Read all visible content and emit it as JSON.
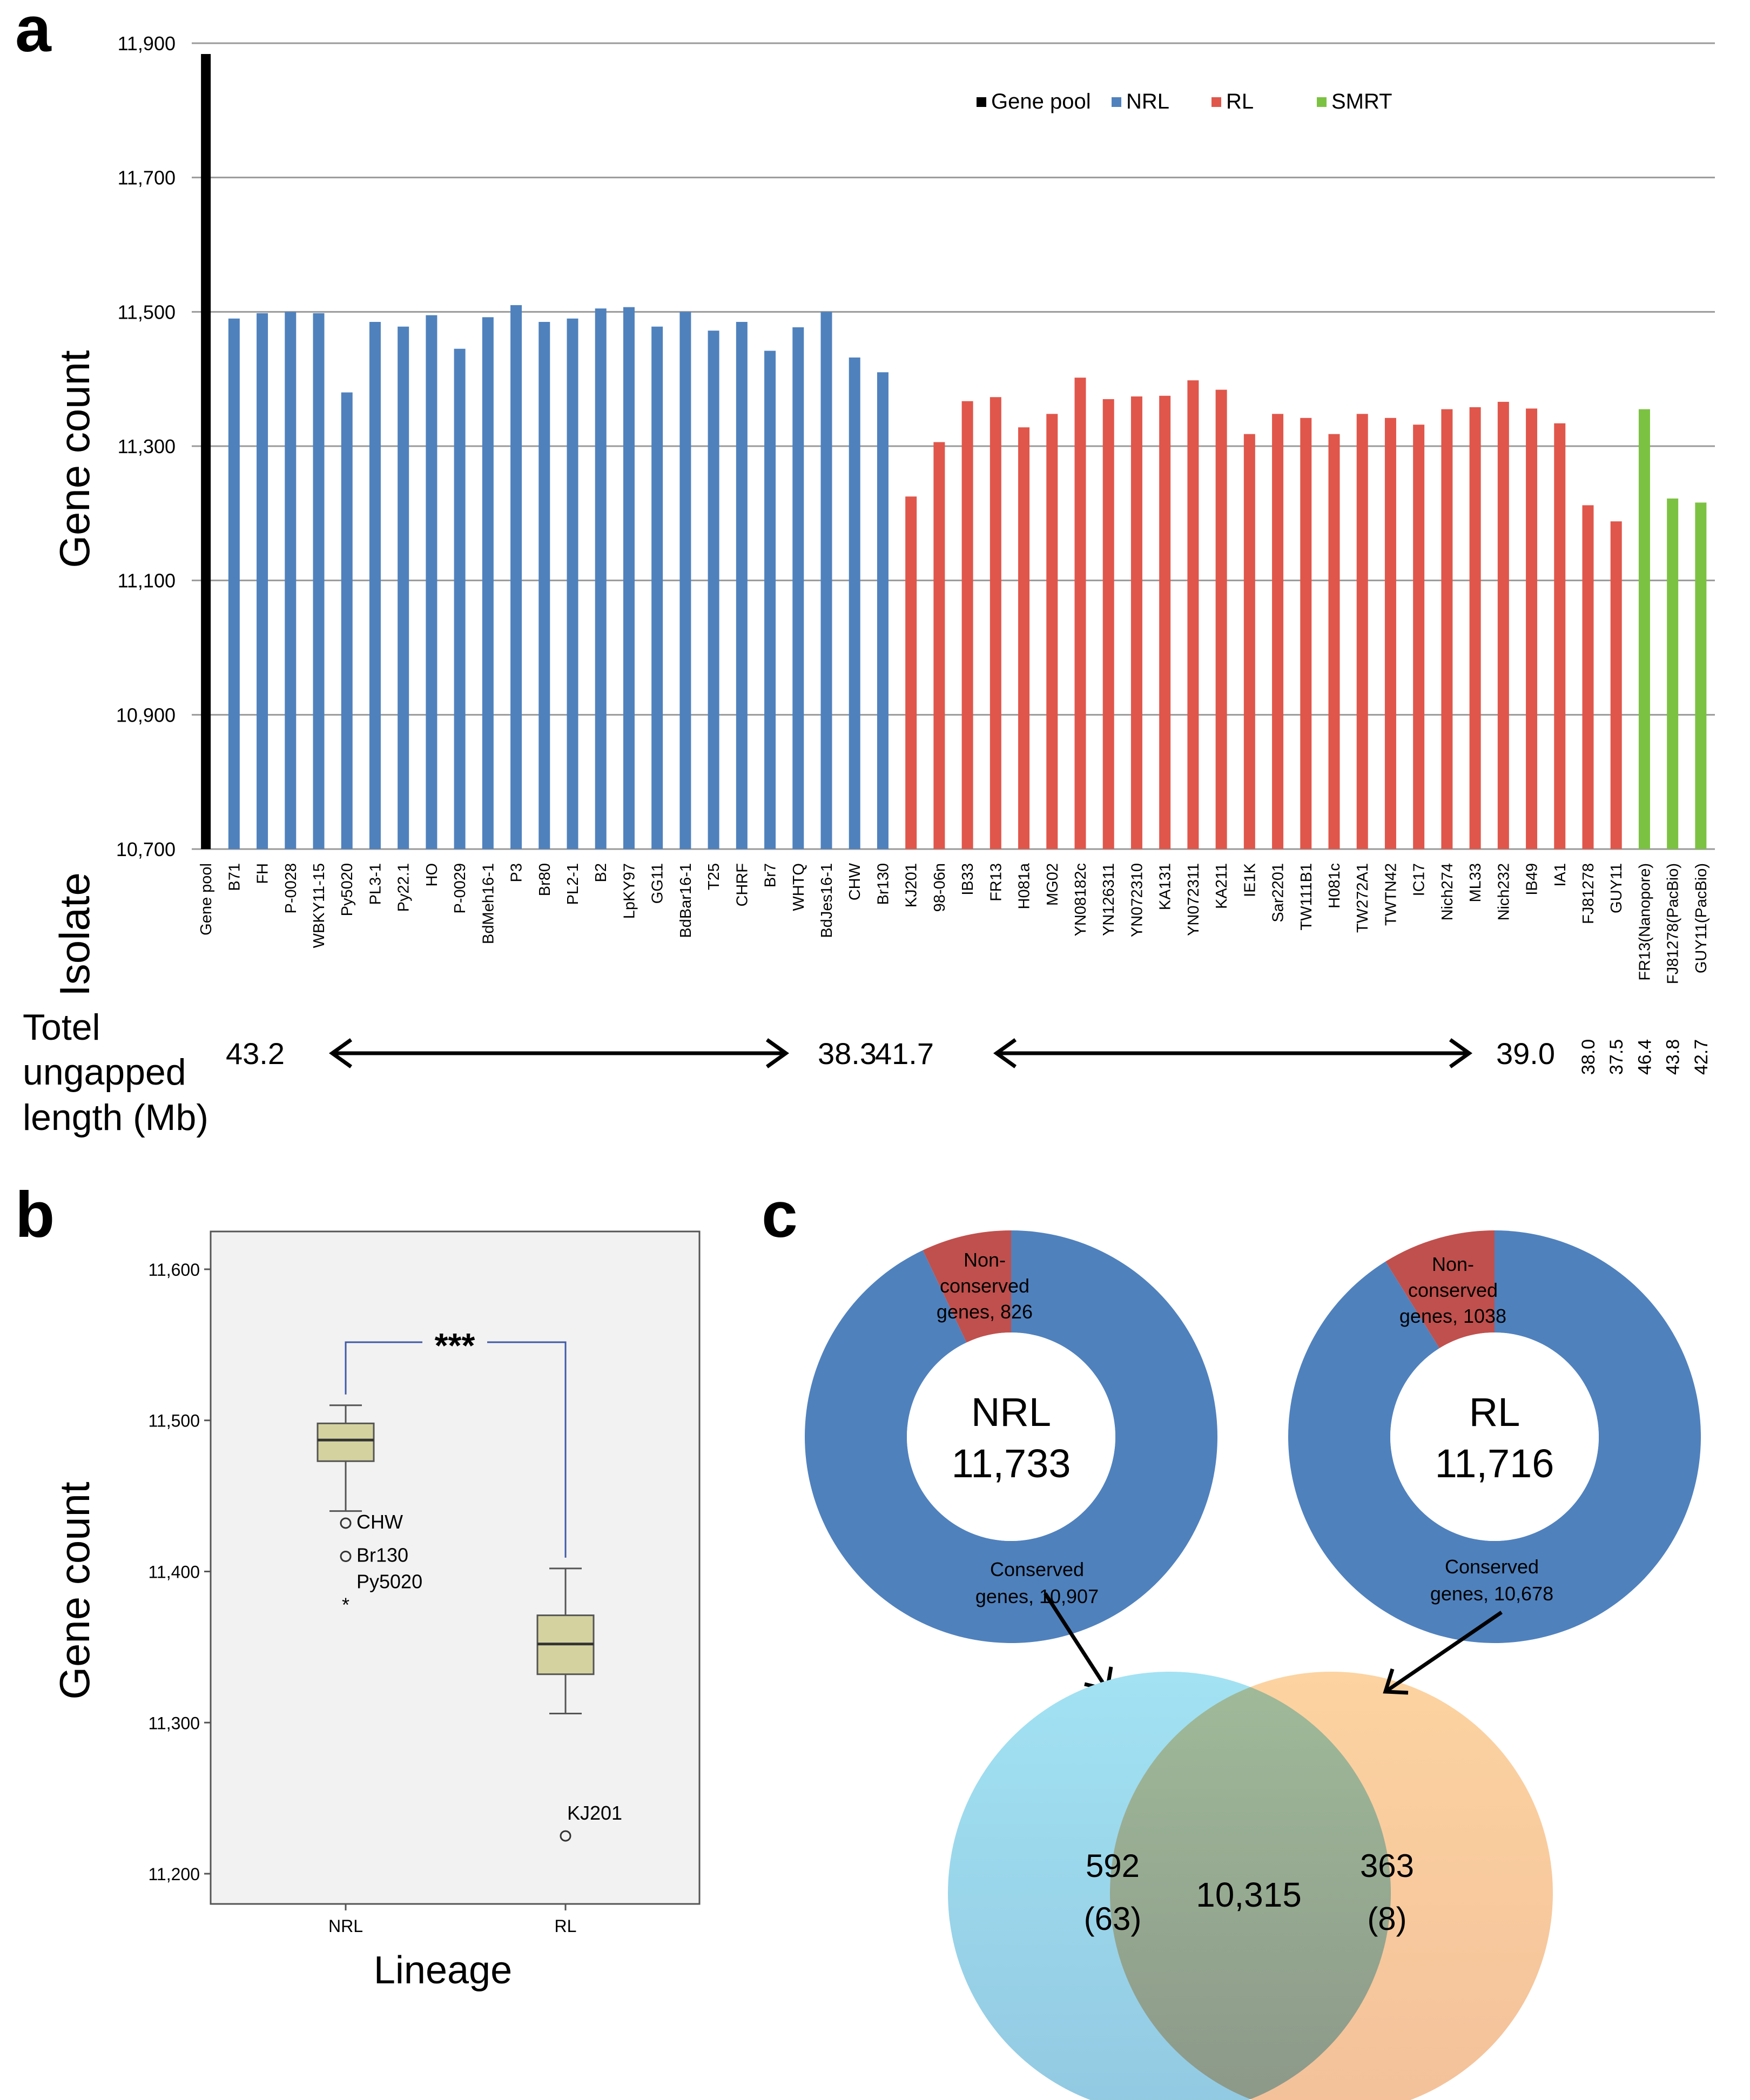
{
  "panels": {
    "a": "a",
    "b": "b",
    "c": "c"
  },
  "colors": {
    "gene_pool": "#000000",
    "NRL": "#4f81bd",
    "RL": "#e0564b",
    "SMRT": "#7cc242",
    "grid": "#9a9a9a",
    "box_fill": "#d4d3a0",
    "plot_bg": "#f2f2f2"
  },
  "chart_data": [
    {
      "panel": "a",
      "type": "bar",
      "ylabel": "Gene count",
      "xlabel": "Isolate",
      "ylim": [
        10700,
        11900
      ],
      "yticks": [
        10700,
        10900,
        11100,
        11300,
        11500,
        11700,
        11900
      ],
      "ytick_labels": [
        "10,700",
        "10,900",
        "11,100",
        "11,300",
        "11,500",
        "11,700",
        "11,900"
      ],
      "grid": true,
      "legend": {
        "position": "top-right",
        "items": [
          {
            "label": "Gene pool",
            "color": "#000000"
          },
          {
            "label": "NRL",
            "color": "#4f81bd"
          },
          {
            "label": "RL",
            "color": "#e0564b"
          },
          {
            "label": "SMRT",
            "color": "#7cc242"
          }
        ]
      },
      "categories": [
        "Gene pool",
        "B71",
        "FH",
        "P-0028",
        "WBKY11-15",
        "Py5020",
        "PL3-1",
        "Py22.1",
        "HO",
        "P-0029",
        "BdMeh16-1",
        "P3",
        "Br80",
        "PL2-1",
        "B2",
        "LpKY97",
        "GG11",
        "BdBar16-1",
        "T25",
        "CHRF",
        "Br7",
        "WHTQ",
        "BdJes16-1",
        "CHW",
        "Br130",
        "KJ201",
        "98-06n",
        "IB33",
        "FR13",
        "H081a",
        "MG02",
        "YN08182c",
        "YN126311",
        "YN072310",
        "KA131",
        "YN072311",
        "KA211",
        "IE1K",
        "Sar2201",
        "TW111B1",
        "H081c",
        "TW272A1",
        "TWTN42",
        "IC17",
        "Nich274",
        "ML33",
        "Nich232",
        "IB49",
        "IA1",
        "FJ81278",
        "GUY11",
        "FR13(Nanopore)",
        "FJ81278(PacBio)",
        "GUY11(PacBio)"
      ],
      "groups": [
        "Gene pool",
        "NRL",
        "NRL",
        "NRL",
        "NRL",
        "NRL",
        "NRL",
        "NRL",
        "NRL",
        "NRL",
        "NRL",
        "NRL",
        "NRL",
        "NRL",
        "NRL",
        "NRL",
        "NRL",
        "NRL",
        "NRL",
        "NRL",
        "NRL",
        "NRL",
        "NRL",
        "NRL",
        "NRL",
        "RL",
        "RL",
        "RL",
        "RL",
        "RL",
        "RL",
        "RL",
        "RL",
        "RL",
        "RL",
        "RL",
        "RL",
        "RL",
        "RL",
        "RL",
        "RL",
        "RL",
        "RL",
        "RL",
        "RL",
        "RL",
        "RL",
        "RL",
        "RL",
        "RL",
        "RL",
        "SMRT",
        "SMRT",
        "SMRT"
      ],
      "values": [
        11910,
        11490,
        11498,
        11500,
        11498,
        11380,
        11485,
        11478,
        11495,
        11445,
        11492,
        11510,
        11485,
        11490,
        11505,
        11507,
        11478,
        11500,
        11472,
        11485,
        11442,
        11477,
        11500,
        11432,
        11410,
        11225,
        11306,
        11367,
        11373,
        11328,
        11348,
        11402,
        11370,
        11374,
        11375,
        11398,
        11384,
        11318,
        11348,
        11342,
        11318,
        11348,
        11342,
        11332,
        11355,
        11358,
        11366,
        11356,
        11334,
        11212,
        11188,
        11355,
        11222,
        11216
      ],
      "length_row": {
        "title_lines": [
          "Totel",
          "ungapped",
          "length (Mb)"
        ],
        "range_labels": [
          "43.2",
          "38.3",
          "41.7",
          "39.0"
        ],
        "single_labels": [
          "38.0",
          "37.5",
          "46.4",
          "43.8",
          "42.7"
        ]
      }
    },
    {
      "panel": "b",
      "type": "box",
      "ylabel": "Gene count",
      "xlabel": "Lineage",
      "ylim": [
        11180,
        11625
      ],
      "yticks": [
        11200,
        11300,
        11400,
        11500,
        11600
      ],
      "ytick_labels": [
        "11,200",
        "11,300",
        "11,400",
        "11,500",
        "11,600"
      ],
      "categories": [
        "NRL",
        "RL"
      ],
      "boxes": [
        {
          "name": "NRL",
          "whisker_low": 11440,
          "q1": 11473,
          "median": 11487,
          "q3": 11498,
          "whisker_high": 11510
        },
        {
          "name": "RL",
          "whisker_low": 11306,
          "q1": 11332,
          "median": 11352,
          "q3": 11371,
          "whisker_high": 11402
        }
      ],
      "outliers": [
        {
          "group": "NRL",
          "label": "CHW",
          "value": 11432,
          "marker": "circle"
        },
        {
          "group": "NRL",
          "label": "Br130",
          "value": 11410,
          "marker": "circle"
        },
        {
          "group": "NRL",
          "label": "Py5020",
          "value": 11380,
          "marker": "star"
        },
        {
          "group": "RL",
          "label": "KJ201",
          "value": 11225,
          "marker": "circle"
        }
      ],
      "significance": "***"
    },
    {
      "panel": "c",
      "type": "pie",
      "donuts": [
        {
          "name": "NRL",
          "total": "11,733",
          "slices": [
            {
              "label": "Non-conserved genes",
              "value": 826,
              "text_lines": [
                "Non-",
                "conserved",
                "genes, 826"
              ],
              "color": "#c0504d"
            },
            {
              "label": "Conserved genes",
              "value": 10907,
              "text_lines": [
                "Conserved",
                "genes, 10,907"
              ],
              "color": "#4f81bd"
            }
          ]
        },
        {
          "name": "RL",
          "total": "11,716",
          "slices": [
            {
              "label": "Non-conserved genes",
              "value": 1038,
              "text_lines": [
                "Non-",
                "conserved",
                "genes, 1038"
              ],
              "color": "#c0504d"
            },
            {
              "label": "Conserved genes",
              "value": 10678,
              "text_lines": [
                "Conserved",
                "genes, 10,678"
              ],
              "color": "#4f81bd"
            }
          ]
        }
      ],
      "venn": {
        "left": {
          "set": "NRL",
          "value": "592",
          "sub": "(63)",
          "color": "#9edff0"
        },
        "overlap": {
          "value": "10,315"
        },
        "right": {
          "set": "RL",
          "value": "363",
          "sub": "(8)",
          "color": "#f9c791"
        }
      }
    }
  ]
}
